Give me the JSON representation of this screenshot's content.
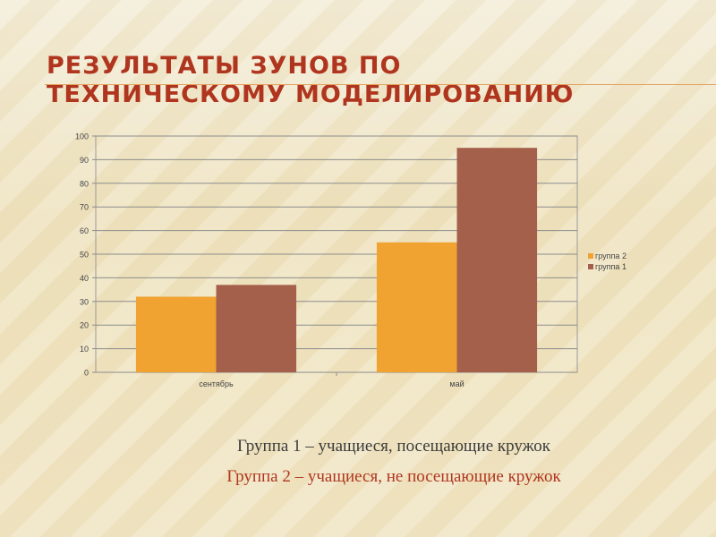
{
  "slide": {
    "title_lines": [
      "РЕЗУЛЬТАТЫ ЗУНОВ ПО",
      "ТЕХНИЧЕСКОМУ МОДЕЛИРОВАНИЮ"
    ],
    "caption_line1": "Группа 1 – учащиеся, посещающие кружок",
    "caption_line2": "Группа 2 – учащиеся,  не посещающие кружок"
  },
  "colors": {
    "title": "#b0351e",
    "series_group2": "#f0a330",
    "series_group1": "#a5604b"
  },
  "chart_data": {
    "type": "bar",
    "categories": [
      "сентябрь",
      "май"
    ],
    "series": [
      {
        "name": "группа 2",
        "values": [
          32,
          55
        ],
        "color": "#f0a330"
      },
      {
        "name": "группа 1",
        "values": [
          37,
          95
        ],
        "color": "#a5604b"
      }
    ],
    "ylim": [
      0,
      100
    ],
    "yticks": [
      0,
      10,
      20,
      30,
      40,
      50,
      60,
      70,
      80,
      90,
      100
    ],
    "grid": true,
    "legend_position": "right"
  }
}
